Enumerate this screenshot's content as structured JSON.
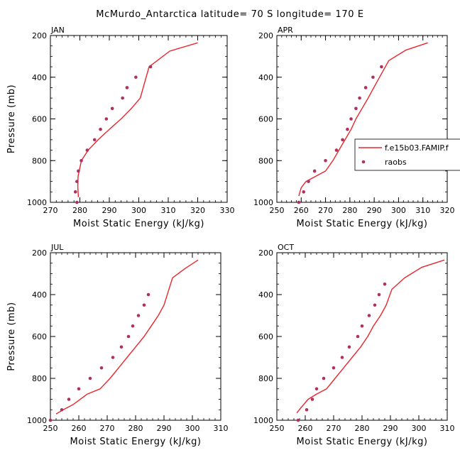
{
  "figure": {
    "title": "McMurdo_Antarctica   latitude= 70 S longitude= 170 E"
  },
  "legend": {
    "model_label": "f.e15b03.FAMIP.f",
    "obs_label": "raobs",
    "placement": "right-middle",
    "model_color": "#e8262d",
    "obs_color": "#b03060"
  },
  "chart_data": [
    {
      "type": "line",
      "panel": "JAN",
      "xlabel": "Moist Static Energy (kJ/kg)",
      "ylabel": "Pressure (mb)",
      "xlim": [
        270,
        330
      ],
      "xticks": [
        270,
        280,
        290,
        300,
        310,
        320,
        330
      ],
      "ylim": [
        1000,
        200
      ],
      "yticks": [
        200,
        400,
        600,
        800,
        1000
      ],
      "series": [
        {
          "name": "f.e15b03.FAMIP.f",
          "style": "line",
          "x": [
            279.5,
            279.3,
            279.4,
            280.5,
            282.8,
            286.2,
            290.0,
            294.0,
            297.5,
            300.5,
            303.5,
            310.5,
            320.0
          ],
          "y": [
            975,
            925,
            875,
            800,
            750,
            700,
            650,
            600,
            550,
            500,
            350,
            275,
            235
          ]
        },
        {
          "name": "raobs",
          "style": "points",
          "x": [
            279.0,
            278.5,
            279.0,
            279.5,
            280.5,
            282.5,
            285.0,
            287.0,
            289.0,
            291.0,
            294.5,
            296.0,
            299.0,
            304.0
          ],
          "y": [
            1000,
            950,
            900,
            850,
            800,
            750,
            700,
            650,
            600,
            550,
            500,
            450,
            400,
            350
          ]
        }
      ]
    },
    {
      "type": "line",
      "panel": "APR",
      "xlabel": "Moist Static Energy (kJ/kg)",
      "ylabel": "",
      "xlim": [
        250,
        320
      ],
      "xticks": [
        250,
        260,
        270,
        280,
        290,
        300,
        310,
        320
      ],
      "ylim": [
        1000,
        200
      ],
      "yticks": [
        200,
        400,
        600,
        800,
        1000
      ],
      "series": [
        {
          "name": "f.e15b03.FAMIP.f",
          "style": "line",
          "x": [
            259.0,
            260.0,
            262.0,
            266.0,
            270.0,
            273.0,
            275.5,
            278.0,
            280.5,
            282.5,
            285.0,
            287.5,
            291.0,
            296.0,
            303.0,
            312.0
          ],
          "y": [
            970,
            930,
            900,
            875,
            850,
            800,
            750,
            700,
            650,
            600,
            550,
            500,
            425,
            320,
            270,
            235
          ]
        },
        {
          "name": "raobs",
          "style": "points",
          "x": [
            259.0,
            261.0,
            263.0,
            265.5,
            270.0,
            274.5,
            277.0,
            279.0,
            280.5,
            282.5,
            284.0,
            286.5,
            289.5,
            293.0
          ],
          "y": [
            1000,
            950,
            900,
            850,
            800,
            750,
            700,
            650,
            600,
            550,
            500,
            450,
            400,
            350
          ]
        }
      ]
    },
    {
      "type": "line",
      "panel": "JUL",
      "xlabel": "Moist Static Energy (kJ/kg)",
      "ylabel": "Pressure (mb)",
      "xlim": [
        250,
        310
      ],
      "xticks": [
        250,
        260,
        270,
        280,
        290,
        300,
        310
      ],
      "ylim": [
        1000,
        200
      ],
      "yticks": [
        200,
        400,
        600,
        800,
        1000
      ],
      "series": [
        {
          "name": "f.e15b03.FAMIP.f",
          "style": "line",
          "x": [
            252.0,
            254.5,
            258.0,
            263.0,
            267.5,
            271.0,
            274.0,
            277.0,
            280.0,
            283.0,
            285.5,
            288.0,
            290.0,
            293.0,
            297.5,
            302.0
          ],
          "y": [
            970,
            950,
            925,
            875,
            850,
            800,
            750,
            700,
            650,
            600,
            550,
            500,
            450,
            320,
            275,
            235
          ]
        },
        {
          "name": "raobs",
          "style": "points",
          "x": [
            250.0,
            254.0,
            256.5,
            260.0,
            264.0,
            268.0,
            272.0,
            275.0,
            277.5,
            279.0,
            281.0,
            283.0,
            284.5
          ],
          "y": [
            1000,
            950,
            900,
            850,
            800,
            750,
            700,
            650,
            600,
            550,
            500,
            450,
            400
          ]
        }
      ]
    },
    {
      "type": "line",
      "panel": "OCT",
      "xlabel": "Moist Static Energy (kJ/kg)",
      "ylabel": "",
      "xlim": [
        250,
        310
      ],
      "xticks": [
        250,
        260,
        270,
        280,
        290,
        300,
        310
      ],
      "ylim": [
        1000,
        200
      ],
      "yticks": [
        200,
        400,
        600,
        800,
        1000
      ],
      "series": [
        {
          "name": "f.e15b03.FAMIP.f",
          "style": "line",
          "x": [
            257.0,
            258.5,
            261.0,
            264.0,
            267.5,
            270.5,
            273.5,
            276.5,
            279.5,
            282.0,
            284.0,
            286.5,
            288.5,
            290.5,
            295.0,
            301.0,
            309.0
          ],
          "y": [
            965,
            940,
            900,
            875,
            850,
            800,
            750,
            700,
            650,
            600,
            550,
            500,
            450,
            375,
            320,
            270,
            235
          ]
        },
        {
          "name": "raobs",
          "style": "points",
          "x": [
            257.5,
            260.5,
            262.5,
            264.0,
            266.5,
            270.0,
            273.0,
            275.5,
            278.5,
            280.0,
            282.5,
            284.5,
            286.0,
            288.0
          ],
          "y": [
            1000,
            950,
            900,
            850,
            800,
            750,
            700,
            650,
            600,
            550,
            500,
            450,
            400,
            350
          ]
        }
      ]
    }
  ]
}
